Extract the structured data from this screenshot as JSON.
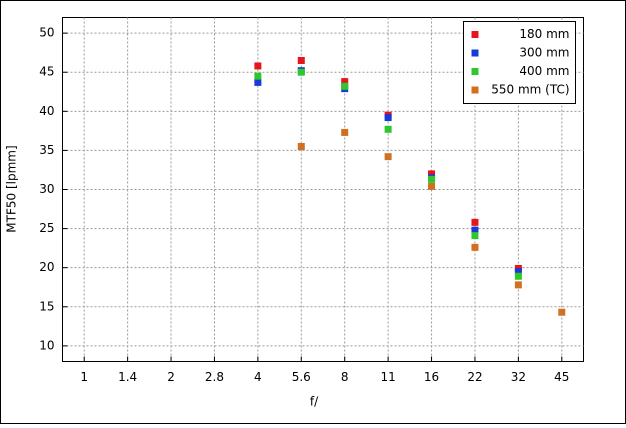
{
  "chart_data": {
    "type": "scatter",
    "xlabel": "f/",
    "ylabel": "MTF50 [lpmm]",
    "categories": [
      "1",
      "1.4",
      "2",
      "2.8",
      "4",
      "5.6",
      "8",
      "11",
      "16",
      "22",
      "32",
      "45"
    ],
    "series": [
      {
        "name": "180 mm",
        "color": "#e8141c",
        "values": [
          null,
          null,
          null,
          null,
          45.8,
          46.5,
          43.8,
          39.5,
          32.0,
          25.8,
          19.9,
          null
        ]
      },
      {
        "name": "300 mm",
        "color": "#1a3ad8",
        "values": [
          null,
          null,
          null,
          null,
          43.7,
          45.2,
          42.9,
          39.2,
          31.5,
          24.8,
          19.5,
          null
        ]
      },
      {
        "name": "400 mm",
        "color": "#2ec82e",
        "values": [
          null,
          null,
          null,
          null,
          44.5,
          45.0,
          43.2,
          37.7,
          31.3,
          24.1,
          18.9,
          null
        ]
      },
      {
        "name": "550 mm (TC)",
        "color": "#d07020",
        "values": [
          null,
          null,
          null,
          null,
          null,
          35.5,
          37.3,
          34.2,
          30.4,
          22.6,
          17.8,
          14.3
        ]
      }
    ],
    "ylim": [
      8,
      52
    ],
    "yticks": [
      10,
      15,
      20,
      25,
      30,
      35,
      40,
      45,
      50
    ],
    "grid": true,
    "legend": "top-right"
  }
}
